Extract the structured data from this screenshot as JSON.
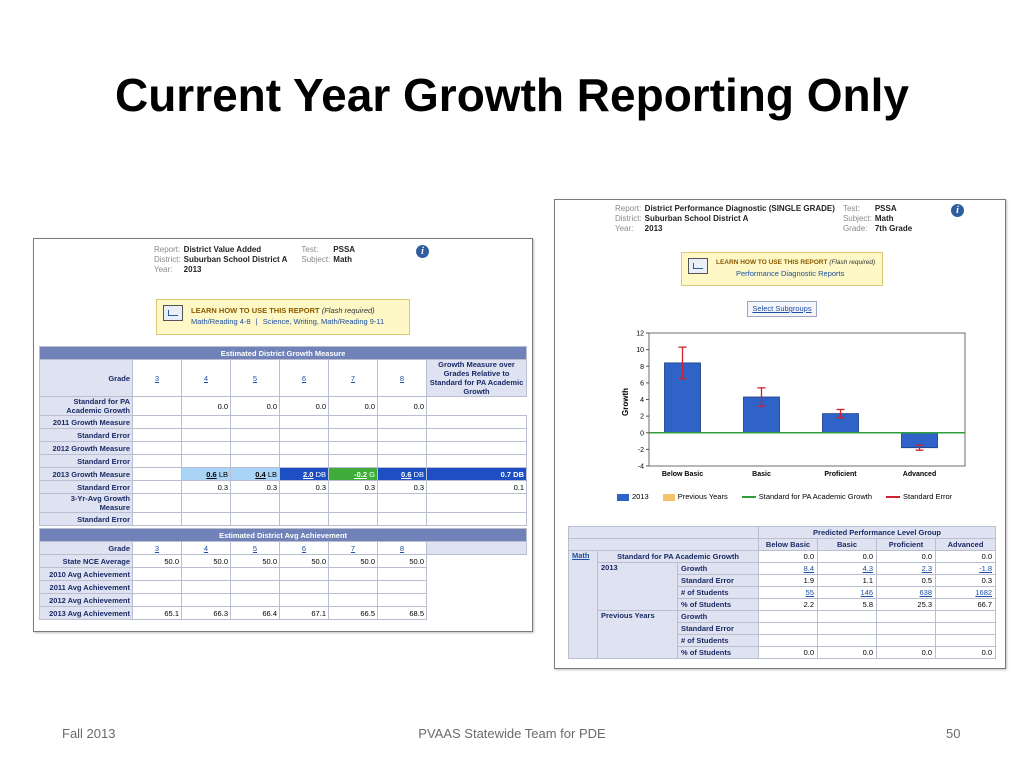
{
  "slide": {
    "title": "Current Year Growth Reporting Only",
    "footer_left": "Fall 2013",
    "footer_center": "PVAAS Statewide Team for PDE",
    "footer_right": "50"
  },
  "left_report": {
    "header": {
      "report_label": "Report:",
      "report_value": "District Value Added",
      "test_label": "Test:",
      "test_value": "PSSA",
      "district_label": "District:",
      "district_value": "Suburban School District A",
      "subject_label": "Subject:",
      "subject_value": "Math",
      "year_label": "Year:",
      "year_value": "2013"
    },
    "learn": {
      "title": "LEARN HOW TO USE THIS REPORT",
      "flash": "(Flash required)",
      "link1": "Math/Reading 4-8",
      "sep": "|",
      "link2": "Science, Writing, Math/Reading 9-11"
    },
    "growth_section_title": "Estimated District Growth Measure",
    "grade_label": "Grade",
    "grades": [
      "3",
      "4",
      "5",
      "6",
      "7",
      "8"
    ],
    "growth_over_grades_label": "Growth Measure over Grades Relative to Standard for PA Academic Growth",
    "growth_rows": [
      {
        "label": "Standard for PA Academic Growth",
        "cells": [
          "",
          "0.0",
          "0.0",
          "0.0",
          "0.0",
          "0.0"
        ],
        "extra": ""
      },
      {
        "label": "2011 Growth Measure",
        "cells": [
          "",
          "",
          "",
          "",
          "",
          ""
        ],
        "extra": ""
      },
      {
        "label": "Standard Error",
        "cells": [
          "",
          "",
          "",
          "",
          "",
          ""
        ],
        "extra": ""
      },
      {
        "label": "2012 Growth Measure",
        "cells": [
          "",
          "",
          "",
          "",
          "",
          ""
        ],
        "extra": ""
      },
      {
        "label": "Standard Error",
        "cells": [
          "",
          "",
          "",
          "",
          "",
          ""
        ],
        "extra": ""
      },
      {
        "label": "2013 Growth Measure",
        "cells": [
          "",
          "0.6",
          "0.4",
          "2.0",
          "-0.2",
          "0.6"
        ],
        "tags": [
          "",
          "LB",
          "LB",
          "DB",
          "G",
          "DB"
        ],
        "extra": "0.7 DB"
      },
      {
        "label": "Standard Error",
        "cells": [
          "",
          "0.3",
          "0.3",
          "0.3",
          "0.3",
          "0.3"
        ],
        "extra": "0.1"
      },
      {
        "label": "3-Yr-Avg Growth Measure",
        "cells": [
          "",
          "",
          "",
          "",
          "",
          ""
        ],
        "extra": ""
      },
      {
        "label": "Standard Error",
        "cells": [
          "",
          "",
          "",
          "",
          "",
          ""
        ],
        "extra": ""
      }
    ],
    "achievement_section_title": "Estimated District Avg Achievement",
    "achievement_rows": [
      {
        "label": "State NCE Average",
        "cells": [
          "50.0",
          "50.0",
          "50.0",
          "50.0",
          "50.0",
          "50.0"
        ]
      },
      {
        "label": "2010 Avg Achievement",
        "cells": [
          "",
          "",
          "",
          "",
          "",
          ""
        ]
      },
      {
        "label": "2011 Avg Achievement",
        "cells": [
          "",
          "",
          "",
          "",
          "",
          ""
        ]
      },
      {
        "label": "2012 Avg Achievement",
        "cells": [
          "",
          "",
          "",
          "",
          "",
          ""
        ]
      },
      {
        "label": "2013 Avg Achievement",
        "cells": [
          "65.1",
          "66.3",
          "66.4",
          "67.1",
          "66.5",
          "68.5"
        ]
      }
    ],
    "colors": {
      "LB": "#a9d4f5",
      "DB": "#1d4ec2",
      "G": "#3fad3a",
      "header": "#7082b7"
    }
  },
  "right_report": {
    "header": {
      "report_label": "Report:",
      "report_value": "District Performance Diagnostic (SINGLE GRADE)",
      "test_label": "Test:",
      "test_value": "PSSA",
      "district_label": "District:",
      "district_value": "Suburban School District A",
      "subject_label": "Subject:",
      "subject_value": "Math",
      "year_label": "Year:",
      "year_value": "2013",
      "grade_label": "Grade:",
      "grade_value": "7th Grade"
    },
    "learn": {
      "title": "LEARN HOW TO USE THIS REPORT",
      "flash": "(Flash required)",
      "link": "Performance Diagnostic Reports"
    },
    "select_subgroups": "Select Subgroups",
    "table": {
      "group_header": "Predicted Performance Level Group",
      "columns": [
        "Below Basic",
        "Basic",
        "Proficient",
        "Advanced"
      ],
      "subject": "Math",
      "standard_label": "Standard for PA Academic Growth",
      "standard_values": [
        "0.0",
        "0.0",
        "0.0",
        "0.0"
      ],
      "years": [
        {
          "year": "2013",
          "rows": [
            {
              "label": "Growth",
              "values": [
                "8.4",
                "4.3",
                "2.3",
                "-1.8"
              ],
              "link": true
            },
            {
              "label": "Standard Error",
              "values": [
                "1.9",
                "1.1",
                "0.5",
                "0.3"
              ],
              "link": false
            },
            {
              "label": "# of Students",
              "values": [
                "55",
                "146",
                "638",
                "1682"
              ],
              "link": true
            },
            {
              "label": "% of Students",
              "values": [
                "2.2",
                "5.8",
                "25.3",
                "66.7"
              ],
              "link": false
            }
          ]
        },
        {
          "year": "Previous Years",
          "rows": [
            {
              "label": "Growth",
              "values": [
                "",
                "",
                "",
                ""
              ],
              "link": false
            },
            {
              "label": "Standard Error",
              "values": [
                "",
                "",
                "",
                ""
              ],
              "link": false
            },
            {
              "label": "# of Students",
              "values": [
                "",
                "",
                "",
                ""
              ],
              "link": false
            },
            {
              "label": "% of Students",
              "values": [
                "0.0",
                "0.0",
                "0.0",
                "0.0"
              ],
              "link": false
            }
          ]
        }
      ]
    }
  },
  "chart_data": {
    "type": "bar",
    "categories": [
      "Below Basic",
      "Basic",
      "Proficient",
      "Advanced"
    ],
    "series": [
      {
        "name": "2013",
        "values": [
          8.4,
          4.3,
          2.3,
          -1.8
        ],
        "error": [
          1.9,
          1.1,
          0.5,
          0.3
        ],
        "color": "#2f63c8"
      }
    ],
    "legend": [
      "2013",
      "Previous Years",
      "Standard for PA Academic Growth",
      "Standard Error"
    ],
    "legend_colors": [
      "#2f63c8",
      "#f2c36b",
      "#2e9e3a",
      "#d0202e"
    ],
    "ylabel": "Growth",
    "ylim": [
      -4,
      12
    ],
    "yticks": [
      "12",
      "10",
      "8",
      "6",
      "4",
      "2",
      "0",
      "-2",
      "-4"
    ],
    "reference_line": 0,
    "grid": false
  }
}
